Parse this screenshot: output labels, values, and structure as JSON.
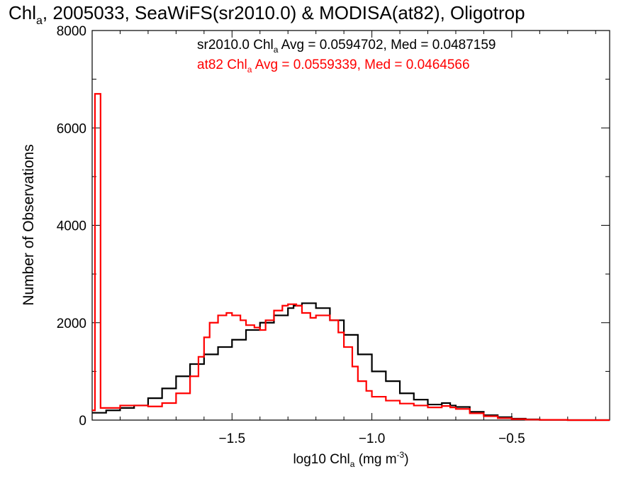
{
  "chart_data": {
    "type": "line",
    "title_main": "Chl",
    "title_sub": "a",
    "title_rest": ", 2005033, SeaWiFS(sr2010.0) & MODISA(at82), Oligotrop",
    "xlabel_main": "log10 Chl",
    "xlabel_sub": "a",
    "xlabel_rest": " (mg m",
    "xlabel_sup": "-3",
    "xlabel_close": ")",
    "ylabel": "Number of Observations",
    "xlim": [
      -2.0,
      -0.15
    ],
    "ylim": [
      0,
      8000
    ],
    "xticks": [
      -1.5,
      -1.0,
      -0.5
    ],
    "xtick_labels": [
      "−1.5",
      "−1.0",
      "−0.5"
    ],
    "yticks": [
      0,
      2000,
      4000,
      6000,
      8000
    ],
    "ytick_labels": [
      "0",
      "2000",
      "4000",
      "6000",
      "8000"
    ],
    "grid": false,
    "legend": [
      {
        "prefix": "sr2010.0 Chl",
        "sub": "a",
        "suffix": " Avg = 0.0594702, Med = 0.0487159",
        "color": "#000000"
      },
      {
        "prefix": "at82 Chl",
        "sub": "a",
        "suffix": " Avg = 0.0559339, Med = 0.0464566",
        "color": "#ff0000"
      }
    ],
    "series": [
      {
        "color": "#000000",
        "x": [
          -2.0,
          -1.95,
          -1.9,
          -1.85,
          -1.8,
          -1.75,
          -1.7,
          -1.65,
          -1.6,
          -1.55,
          -1.5,
          -1.45,
          -1.4,
          -1.35,
          -1.3,
          -1.28,
          -1.25,
          -1.22,
          -1.2,
          -1.15,
          -1.1,
          -1.05,
          -1.0,
          -0.95,
          -0.9,
          -0.85,
          -0.8,
          -0.75,
          -0.72,
          -0.7,
          -0.65,
          -0.6,
          -0.55,
          -0.5,
          -0.45,
          -0.4,
          -0.3,
          -0.2,
          -0.15
        ],
        "y": [
          150,
          200,
          250,
          300,
          450,
          650,
          900,
          1150,
          1350,
          1500,
          1650,
          1850,
          2000,
          2150,
          2300,
          2350,
          2400,
          2400,
          2300,
          2050,
          1750,
          1350,
          1000,
          800,
          550,
          420,
          320,
          350,
          300,
          270,
          170,
          100,
          60,
          30,
          15,
          5,
          0,
          0,
          0
        ]
      },
      {
        "color": "#ff0000",
        "x": [
          -2.0,
          -1.99,
          -1.97,
          -1.95,
          -1.9,
          -1.85,
          -1.8,
          -1.75,
          -1.7,
          -1.65,
          -1.62,
          -1.6,
          -1.58,
          -1.55,
          -1.52,
          -1.5,
          -1.47,
          -1.45,
          -1.42,
          -1.4,
          -1.38,
          -1.35,
          -1.32,
          -1.3,
          -1.27,
          -1.25,
          -1.22,
          -1.2,
          -1.17,
          -1.15,
          -1.12,
          -1.1,
          -1.07,
          -1.05,
          -1.02,
          -1.0,
          -0.95,
          -0.9,
          -0.85,
          -0.8,
          -0.75,
          -0.72,
          -0.7,
          -0.65,
          -0.6,
          -0.55,
          -0.5,
          -0.45,
          -0.4,
          -0.3,
          -0.2,
          -0.15
        ],
        "y": [
          200,
          6700,
          250,
          250,
          300,
          300,
          280,
          350,
          550,
          900,
          1300,
          1700,
          2000,
          2150,
          2200,
          2150,
          2050,
          1950,
          1900,
          1850,
          2050,
          2250,
          2350,
          2380,
          2350,
          2200,
          2100,
          2150,
          2150,
          2050,
          1800,
          1500,
          1100,
          800,
          600,
          480,
          400,
          340,
          300,
          260,
          290,
          260,
          230,
          140,
          80,
          40,
          20,
          10,
          5,
          0,
          0,
          0
        ]
      }
    ]
  }
}
